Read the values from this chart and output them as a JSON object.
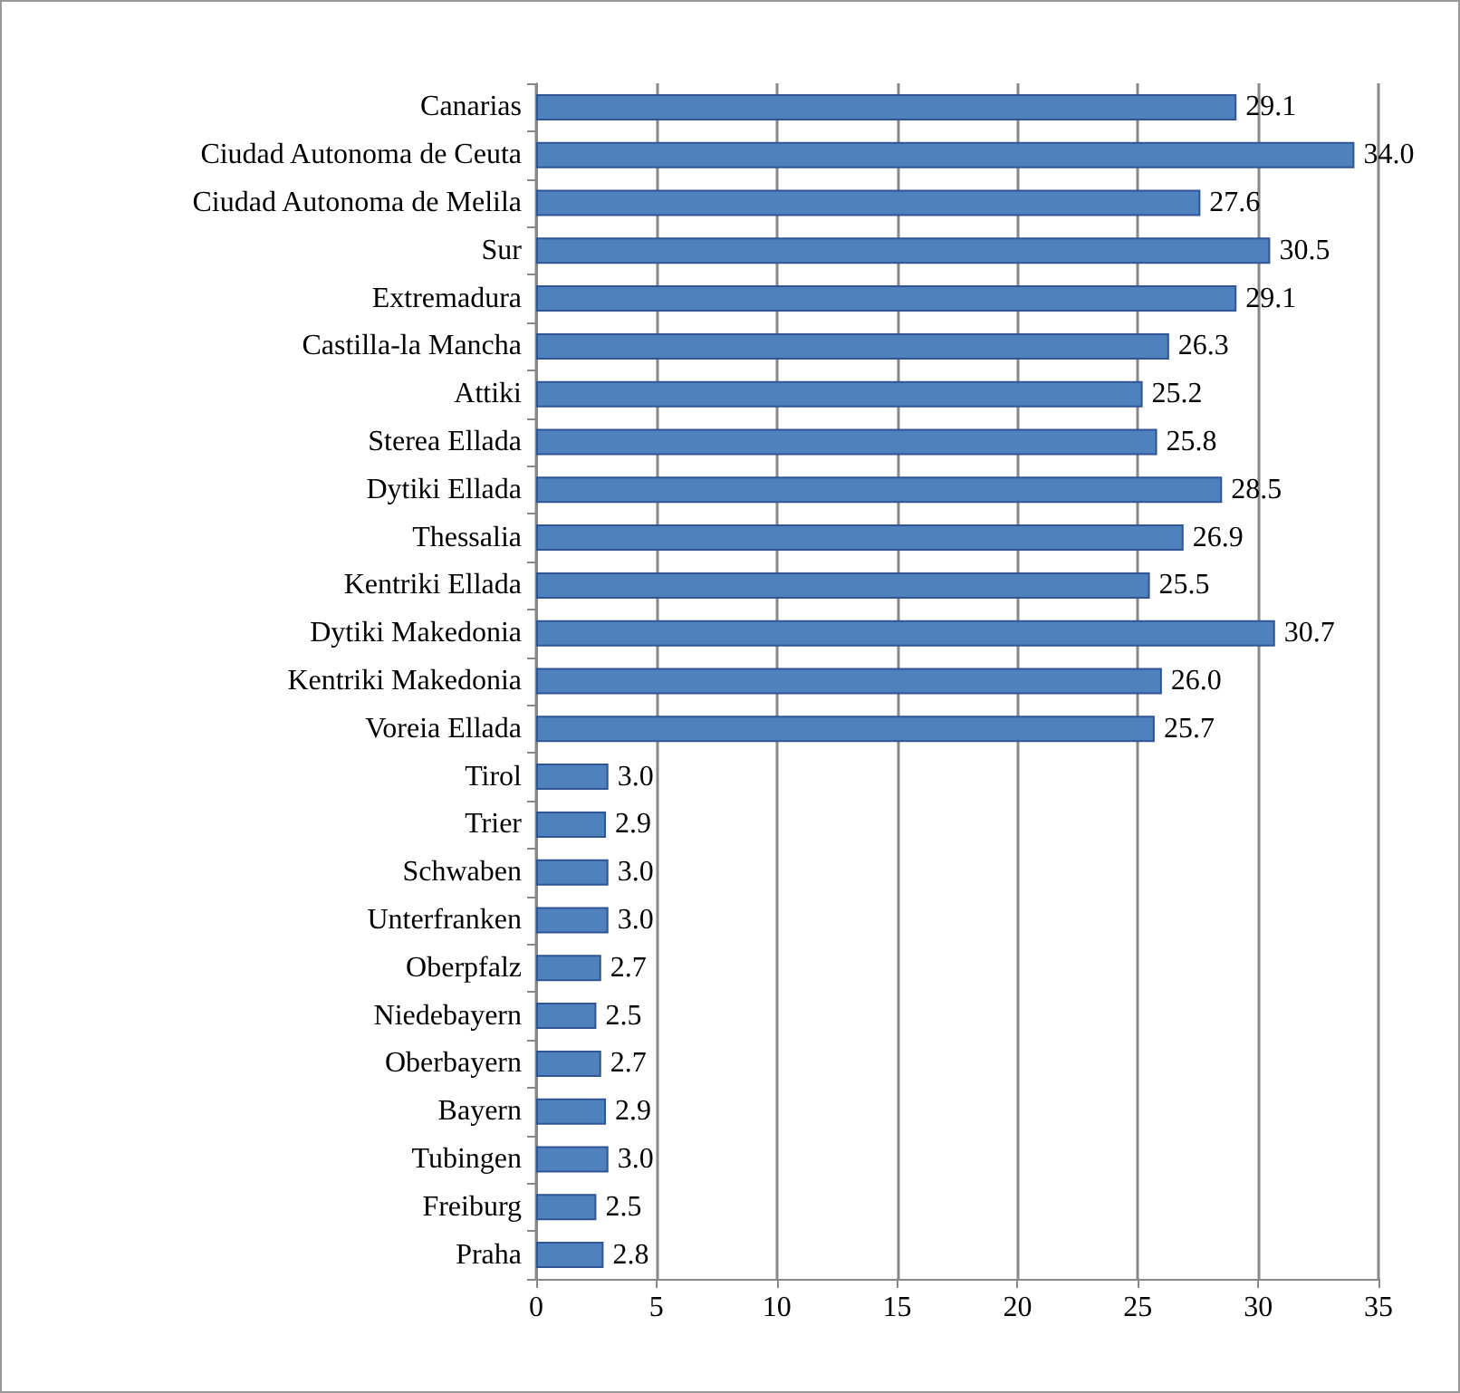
{
  "chart_data": {
    "type": "bar",
    "orientation": "horizontal",
    "categories": [
      "Canarias",
      "Ciudad Autonoma de Ceuta",
      "Ciudad Autonoma de Melila",
      "Sur",
      "Extremadura",
      "Castilla-la Mancha",
      "Attiki",
      "Sterea Ellada",
      "Dytiki Ellada",
      "Thessalia",
      "Kentriki Ellada",
      "Dytiki Makedonia",
      "Kentriki Makedonia",
      "Voreia Ellada",
      "Tirol",
      "Trier",
      "Schwaben",
      "Unterfranken",
      "Oberpfalz",
      "Niedebayern",
      "Oberbayern",
      "Bayern",
      "Tubingen",
      "Freiburg",
      "Praha"
    ],
    "values": [
      29.1,
      34.0,
      27.6,
      30.5,
      29.1,
      26.3,
      25.2,
      25.8,
      28.5,
      26.9,
      25.5,
      30.7,
      26.0,
      25.7,
      3.0,
      2.9,
      3.0,
      3.0,
      2.7,
      2.5,
      2.7,
      2.9,
      3.0,
      2.5,
      2.8
    ],
    "value_labels": [
      "29.1",
      "34.0",
      "27.6",
      "30.5",
      "29.1",
      "26.3",
      "25.2",
      "25.8",
      "28.5",
      "26.9",
      "25.5",
      "30.7",
      "26.0",
      "25.7",
      "3.0",
      "2.9",
      "3.0",
      "3.0",
      "2.7",
      "2.5",
      "2.7",
      "2.9",
      "3.0",
      "2.5",
      "2.8"
    ],
    "color": "#4f81bd",
    "xlim": [
      0,
      35
    ],
    "xticks": [
      0,
      5,
      10,
      15,
      20,
      25,
      30,
      35
    ],
    "grid": "x"
  }
}
